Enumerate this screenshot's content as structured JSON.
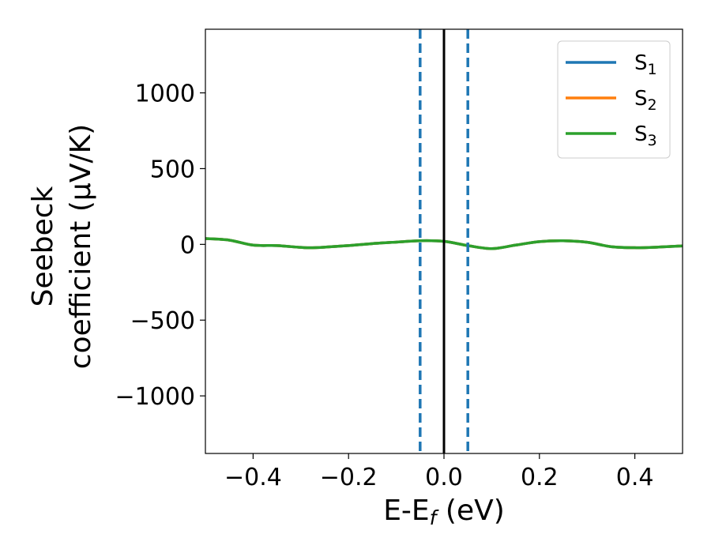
{
  "chart_data": {
    "type": "line",
    "xlabel": {
      "main": "E-E",
      "sub": "f",
      "suffix": " (eV)"
    },
    "ylabel": {
      "line1": "Seebeck",
      "line2": "coefficient  (μV/K)"
    },
    "xlim": [
      -0.5,
      0.5
    ],
    "ylim": [
      -1380,
      1420
    ],
    "x_ticks": [
      {
        "value": -0.4,
        "label": "−0.4"
      },
      {
        "value": -0.2,
        "label": "−0.2"
      },
      {
        "value": 0.0,
        "label": "0.0"
      },
      {
        "value": 0.2,
        "label": "0.2"
      },
      {
        "value": 0.4,
        "label": "0.4"
      }
    ],
    "y_ticks": [
      {
        "value": 1000,
        "label": "1000"
      },
      {
        "value": 500,
        "label": "500"
      },
      {
        "value": 0,
        "label": "0"
      },
      {
        "value": -500,
        "label": "−500"
      },
      {
        "value": -1000,
        "label": "−1000"
      }
    ],
    "grid": false,
    "legend_position": "top-right",
    "x": [
      -0.5,
      -0.45,
      -0.4,
      -0.35,
      -0.3,
      -0.27,
      -0.2,
      -0.15,
      -0.1,
      -0.05,
      0.0,
      0.05,
      0.1,
      0.15,
      0.2,
      0.25,
      0.3,
      0.35,
      0.4,
      0.45,
      0.5
    ],
    "series": [
      {
        "name": "S",
        "sub": "1",
        "color": "#1f77b4",
        "values": [
          38,
          28,
          -5,
          -8,
          -20,
          -22,
          -8,
          5,
          15,
          24,
          20,
          -8,
          -28,
          -5,
          18,
          24,
          14,
          -15,
          -22,
          -18,
          -10
        ]
      },
      {
        "name": "S",
        "sub": "2",
        "color": "#ff7f0e",
        "values": [
          38,
          28,
          -5,
          -8,
          -20,
          -22,
          -8,
          5,
          15,
          24,
          20,
          -8,
          -28,
          -5,
          18,
          24,
          14,
          -15,
          -22,
          -18,
          -10
        ]
      },
      {
        "name": "S",
        "sub": "3",
        "color": "#2ca02c",
        "values": [
          38,
          28,
          -5,
          -8,
          -20,
          -22,
          -8,
          5,
          15,
          24,
          20,
          -8,
          -28,
          -5,
          18,
          24,
          14,
          -15,
          -22,
          -18,
          -10
        ]
      }
    ],
    "vlines": [
      {
        "x": -0.05,
        "style": "dashed",
        "color": "#1f77b4"
      },
      {
        "x": 0.05,
        "style": "dashed",
        "color": "#1f77b4"
      },
      {
        "x": 0.0,
        "style": "solid",
        "color": "#000000"
      }
    ]
  }
}
